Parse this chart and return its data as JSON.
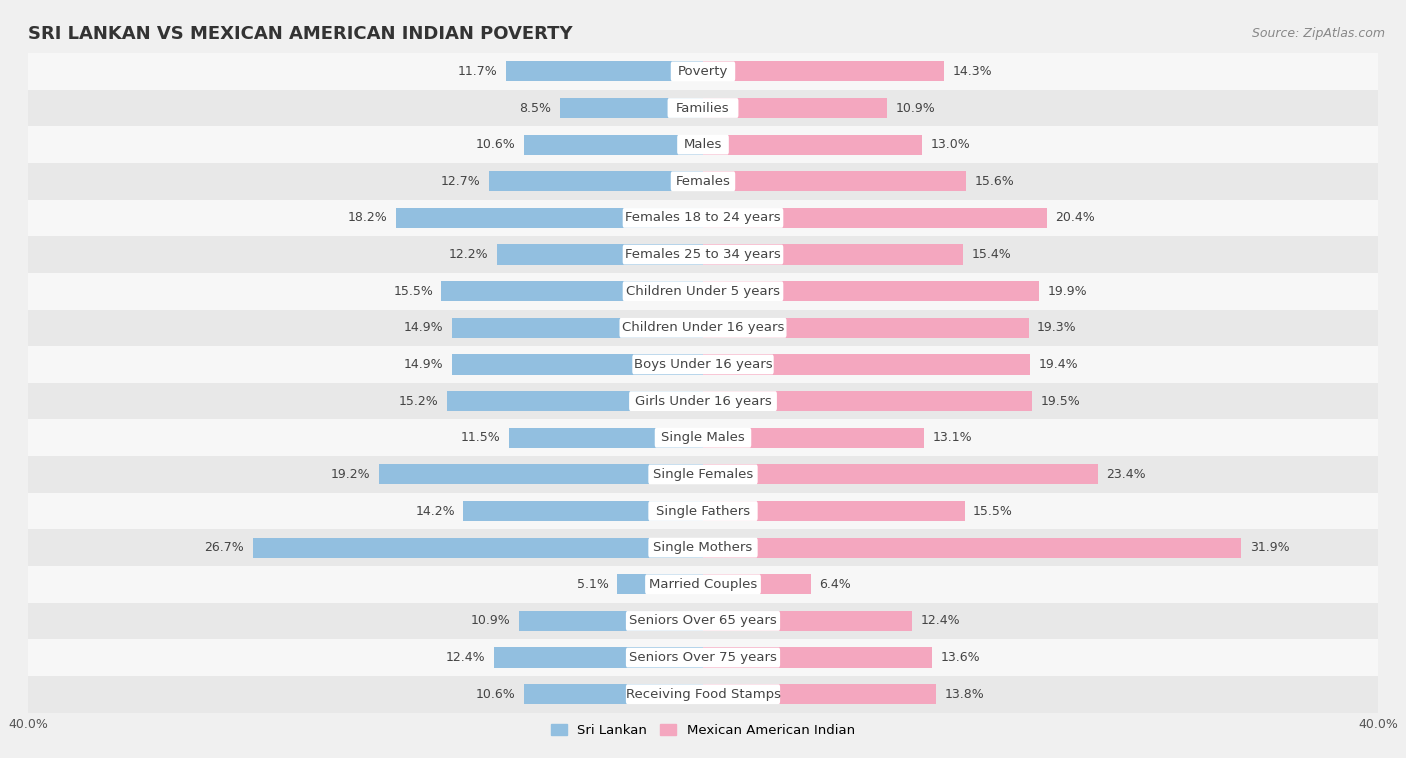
{
  "title": "SRI LANKAN VS MEXICAN AMERICAN INDIAN POVERTY",
  "source": "Source: ZipAtlas.com",
  "categories": [
    "Poverty",
    "Families",
    "Males",
    "Females",
    "Females 18 to 24 years",
    "Females 25 to 34 years",
    "Children Under 5 years",
    "Children Under 16 years",
    "Boys Under 16 years",
    "Girls Under 16 years",
    "Single Males",
    "Single Females",
    "Single Fathers",
    "Single Mothers",
    "Married Couples",
    "Seniors Over 65 years",
    "Seniors Over 75 years",
    "Receiving Food Stamps"
  ],
  "sri_lankan": [
    11.7,
    8.5,
    10.6,
    12.7,
    18.2,
    12.2,
    15.5,
    14.9,
    14.9,
    15.2,
    11.5,
    19.2,
    14.2,
    26.7,
    5.1,
    10.9,
    12.4,
    10.6
  ],
  "mexican_american_indian": [
    14.3,
    10.9,
    13.0,
    15.6,
    20.4,
    15.4,
    19.9,
    19.3,
    19.4,
    19.5,
    13.1,
    23.4,
    15.5,
    31.9,
    6.4,
    12.4,
    13.6,
    13.8
  ],
  "sri_lankan_color": "#92bfe0",
  "mexican_color": "#f4a7bf",
  "background_color": "#f0f0f0",
  "row_color_light": "#f7f7f7",
  "row_color_dark": "#e8e8e8",
  "label_bg_color": "#ffffff",
  "xlim": 40.0,
  "legend_sri_lankan": "Sri Lankan",
  "legend_mexican": "Mexican American Indian",
  "bar_height": 0.55,
  "label_fontsize": 9.5,
  "value_fontsize": 9.0,
  "title_fontsize": 13,
  "source_fontsize": 9
}
